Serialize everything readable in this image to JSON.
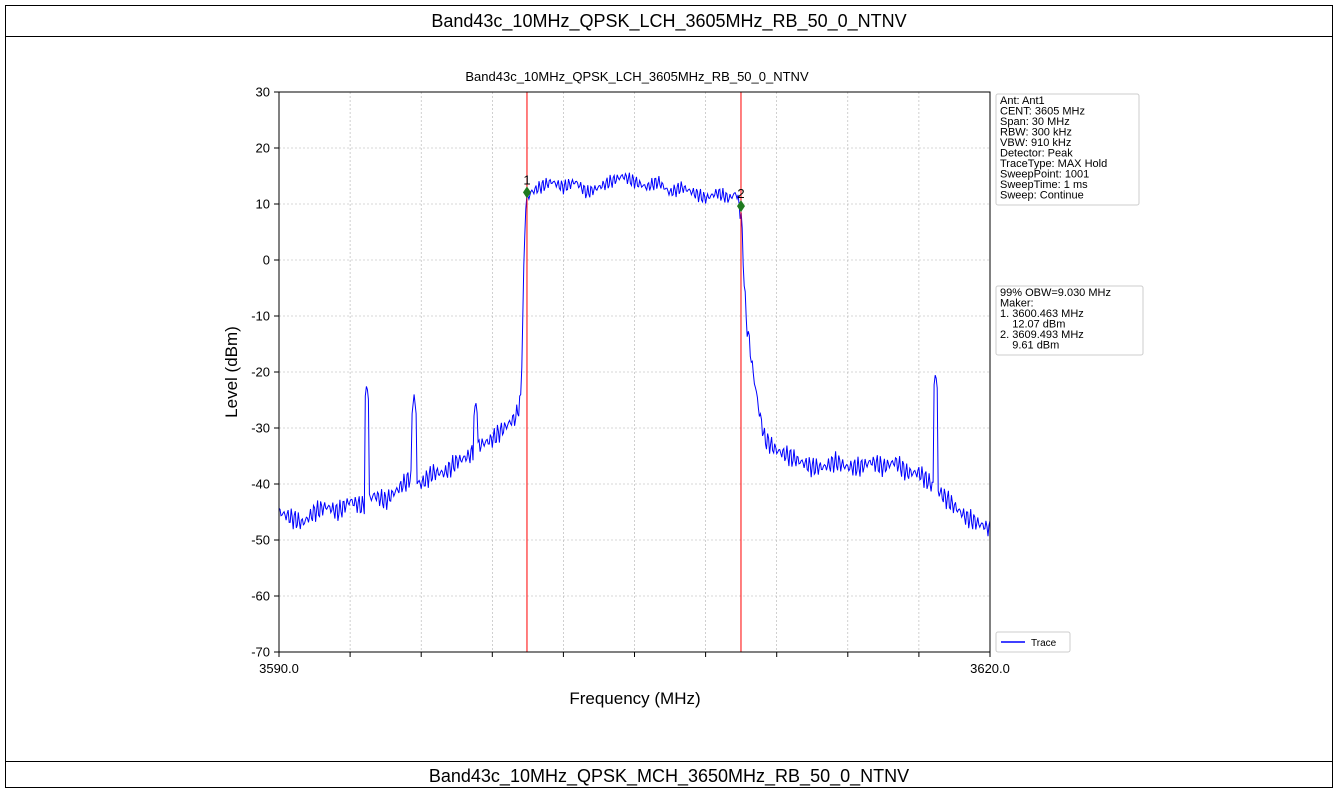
{
  "header": {
    "title": "Band43c_10MHz_QPSK_LCH_3605MHz_RB_50_0_NTNV"
  },
  "footer": {
    "title": "Band43c_10MHz_QPSK_MCH_3650MHz_RB_50_0_NTNV"
  },
  "colors": {
    "trace": "#0000ff",
    "marker_line": "#ff0000",
    "marker": "#1f7a1f",
    "grid": "#b0b0b0"
  },
  "chart_data": {
    "type": "line",
    "title": "Band43c_10MHz_QPSK_LCH_3605MHz_RB_50_0_NTNV",
    "xlabel": "Frequency (MHz)",
    "ylabel": "Level (dBm)",
    "xlim": [
      3590,
      3620
    ],
    "ylim": [
      -70,
      30
    ],
    "x_tick_labels": [
      "3590.0",
      "3620.0"
    ],
    "y_ticks": [
      30,
      20,
      10,
      0,
      -10,
      -20,
      -30,
      -40,
      -50,
      -60,
      -70
    ],
    "grid": true,
    "series": [
      {
        "name": "Trace",
        "x": [
          3590.0,
          3590.5,
          3591.0,
          3591.5,
          3592.0,
          3592.5,
          3593.0,
          3593.5,
          3594.0,
          3594.5,
          3595.0,
          3595.5,
          3596.0,
          3596.5,
          3597.0,
          3597.5,
          3598.0,
          3598.5,
          3599.0,
          3599.5,
          3600.0,
          3600.2,
          3600.4,
          3600.6,
          3601.0,
          3601.5,
          3602.0,
          3602.5,
          3603.0,
          3603.5,
          3604.0,
          3604.5,
          3605.0,
          3605.5,
          3606.0,
          3606.5,
          3607.0,
          3607.5,
          3608.0,
          3608.5,
          3609.0,
          3609.3,
          3609.5,
          3609.7,
          3610.0,
          3610.3,
          3610.5,
          3611.0,
          3611.5,
          3612.0,
          3612.5,
          3613.0,
          3613.5,
          3614.0,
          3614.5,
          3615.0,
          3615.5,
          3616.0,
          3616.5,
          3617.0,
          3617.5,
          3618.0,
          3618.5,
          3619.0,
          3619.5,
          3620.0
        ],
        "y": [
          -45,
          -46,
          -47,
          -45,
          -44,
          -45,
          -43,
          -44,
          -42,
          -43,
          -41,
          -39,
          -40,
          -38,
          -38,
          -36,
          -35,
          -33,
          -32,
          -30,
          -28,
          -25,
          10,
          12,
          13,
          14,
          13,
          14,
          12,
          13,
          14,
          15,
          14,
          13,
          14,
          12,
          13,
          12,
          11,
          12,
          11,
          12,
          8,
          -10,
          -20,
          -28,
          -32,
          -34,
          -35,
          -36,
          -37,
          -37,
          -36,
          -37,
          -37,
          -36,
          -37,
          -36,
          -38,
          -38,
          -40,
          -42,
          -44,
          -46,
          -47,
          -48
        ]
      }
    ],
    "spikes": [
      {
        "x": 3593.7,
        "y": -22
      },
      {
        "x": 3595.7,
        "y": -24
      },
      {
        "x": 3598.3,
        "y": -25
      },
      {
        "x": 3617.7,
        "y": -20
      }
    ],
    "markers": [
      {
        "label": "1",
        "x": 3600.463,
        "y": 12.07
      },
      {
        "label": "2",
        "x": 3609.493,
        "y": 9.61
      }
    ],
    "info_box": [
      "Ant: Ant1",
      "CENT: 3605 MHz",
      "Span: 30 MHz",
      "RBW: 300 kHz",
      "VBW: 910 kHz",
      "Detector: Peak",
      "TraceType: MAX Hold",
      "SweepPoint: 1001",
      "SweepTime: 1 ms",
      "Sweep: Continue"
    ],
    "obw_box": [
      "99% OBW=9.030 MHz",
      "Maker:",
      "1. 3600.463 MHz",
      "    12.07 dBm",
      "2. 3609.493 MHz",
      "    9.61 dBm"
    ],
    "legend_entry": "Trace",
    "legend_position": "bottom-right"
  }
}
